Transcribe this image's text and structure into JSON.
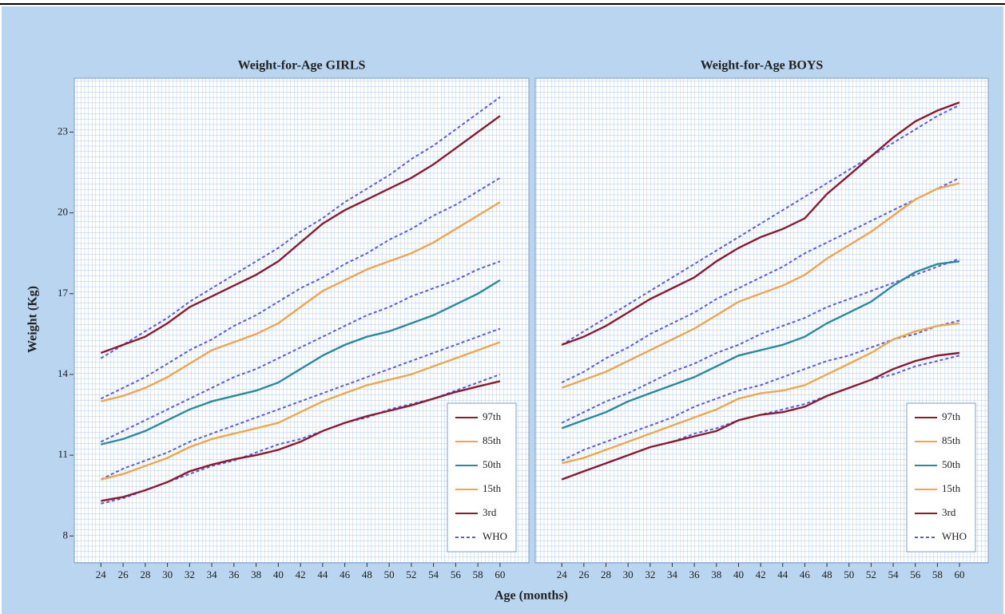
{
  "axis_labels": {
    "x": "Age (months)",
    "y": "Weight (Kg)"
  },
  "chart_data": [
    {
      "type": "line",
      "title": "Weight-for-Age GIRLS",
      "legend": "lower right",
      "x": [
        24,
        26,
        28,
        30,
        32,
        34,
        36,
        38,
        40,
        42,
        44,
        46,
        48,
        50,
        52,
        54,
        56,
        58,
        60
      ],
      "xlim": [
        21.6,
        62.6
      ],
      "xticks": [
        24,
        26,
        28,
        30,
        32,
        34,
        36,
        38,
        40,
        42,
        44,
        46,
        48,
        50,
        52,
        54,
        56,
        58,
        60
      ],
      "ylim": [
        7,
        25
      ],
      "yticks": [
        8,
        11,
        14,
        17,
        20,
        23
      ],
      "series": [
        {
          "name": "97th",
          "color": "#8b1a2e",
          "values": [
            14.8,
            15.1,
            15.4,
            15.9,
            16.5,
            16.9,
            17.3,
            17.7,
            18.2,
            18.9,
            19.6,
            20.1,
            20.5,
            20.9,
            21.3,
            21.8,
            22.4,
            23.0,
            23.6
          ]
        },
        {
          "name": "85th",
          "color": "#f0a44c",
          "values": [
            13.0,
            13.2,
            13.5,
            13.9,
            14.4,
            14.9,
            15.2,
            15.5,
            15.9,
            16.5,
            17.1,
            17.5,
            17.9,
            18.2,
            18.5,
            18.9,
            19.4,
            19.9,
            20.4
          ]
        },
        {
          "name": "50th",
          "color": "#2a8a9c",
          "values": [
            11.4,
            11.6,
            11.9,
            12.3,
            12.7,
            13.0,
            13.2,
            13.4,
            13.7,
            14.2,
            14.7,
            15.1,
            15.4,
            15.6,
            15.9,
            16.2,
            16.6,
            17.0,
            17.5
          ]
        },
        {
          "name": "15th",
          "color": "#eea848",
          "values": [
            10.1,
            10.3,
            10.6,
            10.9,
            11.3,
            11.6,
            11.8,
            12.0,
            12.2,
            12.6,
            13.0,
            13.3,
            13.6,
            13.8,
            14.0,
            14.3,
            14.6,
            14.9,
            15.2
          ]
        },
        {
          "name": "3rd",
          "color": "#8b1a2e",
          "values": [
            9.3,
            9.45,
            9.7,
            10.0,
            10.4,
            10.65,
            10.85,
            11.0,
            11.2,
            11.5,
            11.9,
            12.2,
            12.45,
            12.65,
            12.85,
            13.1,
            13.35,
            13.55,
            13.75
          ]
        }
      ],
      "reference": {
        "name": "WHO",
        "color": "#5b5be0",
        "curves": [
          [
            14.6,
            15.1,
            15.6,
            16.1,
            16.7,
            17.2,
            17.7,
            18.2,
            18.7,
            19.3,
            19.8,
            20.4,
            20.9,
            21.4,
            22.0,
            22.5,
            23.1,
            23.7,
            24.3
          ],
          [
            13.1,
            13.5,
            13.9,
            14.4,
            14.9,
            15.3,
            15.8,
            16.2,
            16.7,
            17.2,
            17.6,
            18.1,
            18.5,
            19.0,
            19.4,
            19.9,
            20.3,
            20.8,
            21.3
          ],
          [
            11.5,
            11.9,
            12.3,
            12.7,
            13.1,
            13.5,
            13.9,
            14.2,
            14.6,
            15.0,
            15.4,
            15.8,
            16.2,
            16.5,
            16.9,
            17.2,
            17.5,
            17.9,
            18.2
          ],
          [
            10.1,
            10.5,
            10.8,
            11.1,
            11.5,
            11.8,
            12.1,
            12.4,
            12.7,
            13.0,
            13.3,
            13.6,
            13.9,
            14.2,
            14.5,
            14.8,
            15.1,
            15.4,
            15.7
          ],
          [
            9.2,
            9.4,
            9.7,
            10.0,
            10.3,
            10.6,
            10.8,
            11.1,
            11.4,
            11.6,
            11.9,
            12.2,
            12.4,
            12.7,
            12.9,
            13.1,
            13.4,
            13.7,
            14.0
          ]
        ]
      }
    },
    {
      "type": "line",
      "title": "Weight-for-Age BOYS",
      "legend": "lower right",
      "x": [
        24,
        26,
        28,
        30,
        32,
        34,
        36,
        38,
        40,
        42,
        44,
        46,
        48,
        50,
        52,
        54,
        56,
        58,
        60
      ],
      "xlim": [
        21.6,
        62.6
      ],
      "xticks": [
        24,
        26,
        28,
        30,
        32,
        34,
        36,
        38,
        40,
        42,
        44,
        46,
        48,
        50,
        52,
        54,
        56,
        58,
        60
      ],
      "ylim": [
        7,
        25
      ],
      "series": [
        {
          "name": "97th",
          "color": "#8b1a2e",
          "values": [
            15.1,
            15.4,
            15.8,
            16.3,
            16.8,
            17.2,
            17.6,
            18.2,
            18.7,
            19.1,
            19.4,
            19.8,
            20.7,
            21.4,
            22.1,
            22.8,
            23.4,
            23.8,
            24.1
          ]
        },
        {
          "name": "85th",
          "color": "#f0a44c",
          "values": [
            13.5,
            13.8,
            14.1,
            14.5,
            14.9,
            15.3,
            15.7,
            16.2,
            16.7,
            17.0,
            17.3,
            17.7,
            18.3,
            18.8,
            19.3,
            19.9,
            20.5,
            20.9,
            21.1
          ]
        },
        {
          "name": "50th",
          "color": "#2a8a9c",
          "values": [
            12.0,
            12.3,
            12.6,
            13.0,
            13.3,
            13.6,
            13.9,
            14.3,
            14.7,
            14.9,
            15.1,
            15.4,
            15.9,
            16.3,
            16.7,
            17.3,
            17.8,
            18.1,
            18.2
          ]
        },
        {
          "name": "15th",
          "color": "#eea848",
          "values": [
            10.7,
            10.9,
            11.2,
            11.5,
            11.8,
            12.1,
            12.4,
            12.7,
            13.1,
            13.3,
            13.4,
            13.6,
            14.0,
            14.4,
            14.8,
            15.3,
            15.6,
            15.8,
            15.9
          ]
        },
        {
          "name": "3rd",
          "color": "#8b1a2e",
          "values": [
            10.1,
            10.4,
            10.7,
            11.0,
            11.3,
            11.5,
            11.7,
            11.9,
            12.3,
            12.5,
            12.6,
            12.8,
            13.2,
            13.5,
            13.8,
            14.2,
            14.5,
            14.7,
            14.8
          ]
        }
      ],
      "reference": {
        "name": "WHO",
        "color": "#5b5be0",
        "curves": [
          [
            15.1,
            15.6,
            16.1,
            16.6,
            17.1,
            17.6,
            18.1,
            18.6,
            19.1,
            19.6,
            20.1,
            20.6,
            21.1,
            21.6,
            22.1,
            22.6,
            23.1,
            23.6,
            24.0
          ],
          [
            13.7,
            14.1,
            14.6,
            15.0,
            15.5,
            15.9,
            16.3,
            16.8,
            17.2,
            17.6,
            18.0,
            18.5,
            18.9,
            19.3,
            19.7,
            20.1,
            20.5,
            20.9,
            21.3
          ],
          [
            12.2,
            12.6,
            13.0,
            13.3,
            13.7,
            14.1,
            14.4,
            14.8,
            15.1,
            15.5,
            15.8,
            16.1,
            16.5,
            16.8,
            17.1,
            17.4,
            17.7,
            18.0,
            18.3
          ],
          [
            10.8,
            11.2,
            11.5,
            11.8,
            12.1,
            12.4,
            12.8,
            13.1,
            13.4,
            13.6,
            13.9,
            14.2,
            14.5,
            14.7,
            15.0,
            15.3,
            15.5,
            15.8,
            16.0
          ],
          [
            10.1,
            10.4,
            10.7,
            11.0,
            11.3,
            11.5,
            11.8,
            12.0,
            12.3,
            12.5,
            12.7,
            12.9,
            13.2,
            13.5,
            13.8,
            14.0,
            14.3,
            14.5,
            14.7
          ]
        ]
      }
    }
  ]
}
